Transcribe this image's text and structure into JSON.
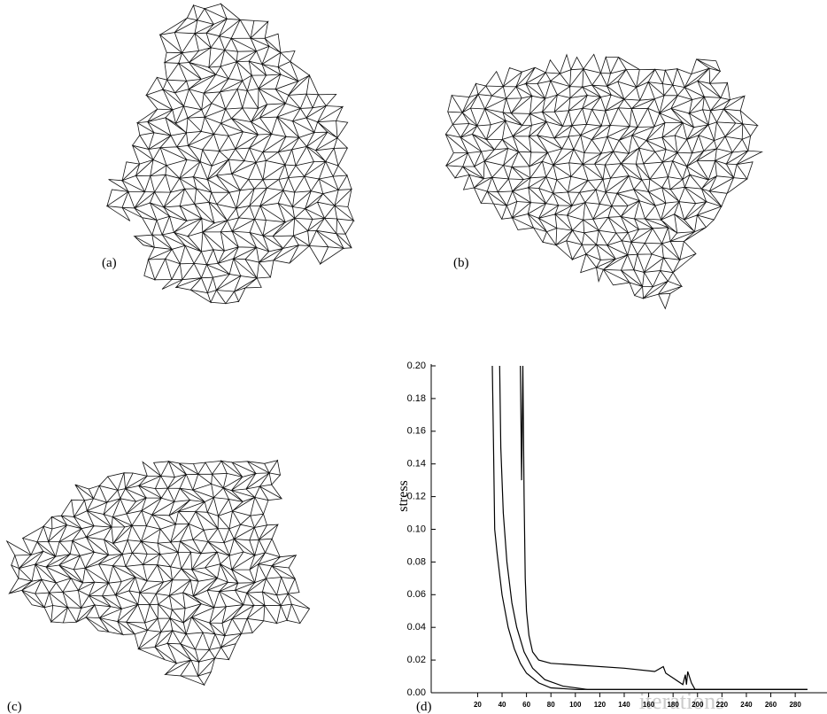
{
  "panels": {
    "a": "(a)",
    "b": "(b)",
    "c": "(c)",
    "d": "(d)"
  },
  "chart_data": {
    "type": "line",
    "xlabel": "iterations",
    "ylabel": "stress",
    "xlim": [
      -18,
      306
    ],
    "ylim": [
      0,
      0.2
    ],
    "xticks": [
      20,
      40,
      60,
      80,
      100,
      120,
      140,
      160,
      180,
      200,
      220,
      240,
      260,
      280
    ],
    "yticks": [
      {
        "value": 0,
        "label": "0.00"
      },
      {
        "value": 0.02,
        "label": "0.02"
      },
      {
        "value": 0.04,
        "label": "0.04"
      },
      {
        "value": 0.06,
        "label": "0.06"
      },
      {
        "value": 0.08,
        "label": "0.08"
      },
      {
        "value": 0.1,
        "label": "0.10"
      },
      {
        "value": 0.12,
        "label": "0.12"
      },
      {
        "value": 0.14,
        "label": "0.14"
      },
      {
        "value": 0.16,
        "label": "0.16"
      },
      {
        "value": 0.18,
        "label": "0.18"
      },
      {
        "value": 0.2,
        "label": "0.20"
      }
    ],
    "series": [
      {
        "color": "#000000",
        "x": [
          32,
          33,
          34,
          36,
          40,
          45,
          50,
          55,
          60,
          70,
          80,
          100,
          150,
          200,
          290
        ],
        "values": [
          0.2,
          0.15,
          0.1,
          0.085,
          0.06,
          0.04,
          0.027,
          0.018,
          0.012,
          0.006,
          0.003,
          0.002,
          0.002,
          0.002,
          0.002
        ]
      },
      {
        "color": "#000000",
        "x": [
          38,
          39,
          41,
          44,
          48,
          52,
          58,
          65,
          75,
          90,
          110,
          150,
          290
        ],
        "values": [
          0.2,
          0.15,
          0.11,
          0.08,
          0.055,
          0.04,
          0.025,
          0.015,
          0.008,
          0.004,
          0.002,
          0.002,
          0.002
        ]
      },
      {
        "color": "#000000",
        "x": [
          55,
          56,
          57,
          58,
          59,
          60,
          62,
          65,
          70,
          80,
          100,
          140,
          165,
          172,
          174,
          180,
          188,
          190,
          191,
          192,
          195,
          198,
          290
        ],
        "values": [
          0.2,
          0.13,
          0.2,
          0.12,
          0.07,
          0.05,
          0.035,
          0.025,
          0.02,
          0.018,
          0.017,
          0.015,
          0.013,
          0.016,
          0.012,
          0.009,
          0.005,
          0.011,
          0.005,
          0.013,
          0.006,
          0.002,
          0.002
        ]
      }
    ]
  }
}
